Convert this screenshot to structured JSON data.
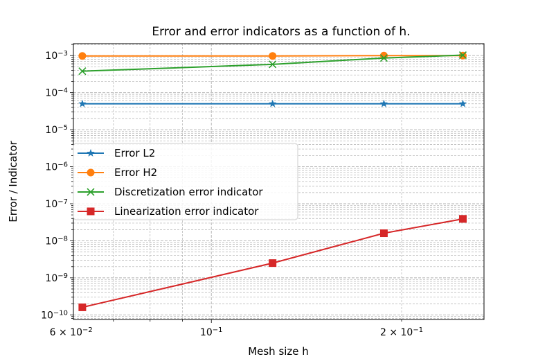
{
  "chart_data": {
    "type": "line",
    "title": "Error and error indicators as a function of h.",
    "xlabel": "Mesh size h",
    "ylabel": "Error / Indicator",
    "xscale": "log",
    "yscale": "log",
    "xlim": [
      0.0605,
      0.27
    ],
    "ylim": [
      7.5e-11,
      0.0021
    ],
    "grid": "on (major and minor, dashed)",
    "legend_position": "center-left",
    "x": [
      0.0625,
      0.125,
      0.1875,
      0.25
    ],
    "x_ticks": [
      {
        "value": 0.06,
        "label": "6 × 10",
        "exp": "−2"
      },
      {
        "value": 0.1,
        "label": "10",
        "exp": "−1"
      },
      {
        "value": 0.2,
        "label": "2 × 10",
        "exp": "−1"
      }
    ],
    "y_ticks": [
      {
        "value": 1e-10,
        "label": "10",
        "exp": "−10"
      },
      {
        "value": 1e-09,
        "label": "10",
        "exp": "−9"
      },
      {
        "value": 1e-08,
        "label": "10",
        "exp": "−8"
      },
      {
        "value": 1e-07,
        "label": "10",
        "exp": "−7"
      },
      {
        "value": 1e-06,
        "label": "10",
        "exp": "−6"
      },
      {
        "value": 1e-05,
        "label": "10",
        "exp": "−5"
      },
      {
        "value": 0.0001,
        "label": "10",
        "exp": "−4"
      },
      {
        "value": 0.001,
        "label": "10",
        "exp": "−3"
      }
    ],
    "series": [
      {
        "name": "Error  L2",
        "color": "#1f77b4",
        "marker": "star",
        "values": [
          5e-05,
          5e-05,
          5e-05,
          5e-05
        ]
      },
      {
        "name": "Error  H2",
        "color": "#ff7f0e",
        "marker": "circle",
        "values": [
          0.00098,
          0.00098,
          0.001,
          0.001
        ]
      },
      {
        "name": "Discretization error indicator",
        "color": "#2ca02c",
        "marker": "x",
        "values": [
          0.00038,
          0.00058,
          0.00086,
          0.00103
        ]
      },
      {
        "name": "Linearization error indicator",
        "color": "#d62728",
        "marker": "square",
        "values": [
          1.6e-10,
          2.5e-09,
          1.6e-08,
          3.9e-08
        ]
      }
    ]
  }
}
